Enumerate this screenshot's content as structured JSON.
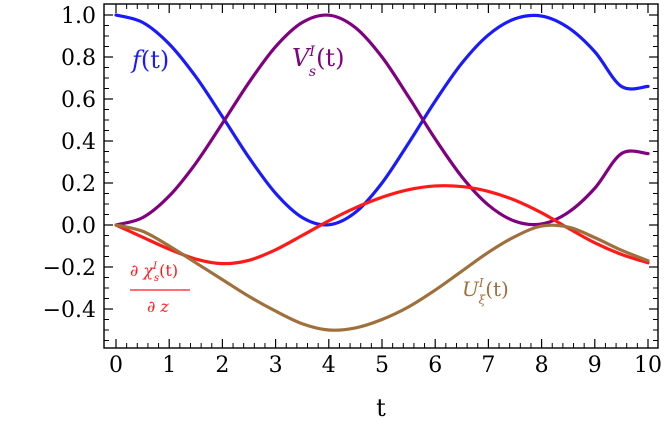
{
  "chart_data": {
    "type": "line",
    "xlabel": "t",
    "ylabel": "",
    "xlim": [
      0,
      10
    ],
    "ylim": [
      -0.58,
      1.0
    ],
    "x_ticks": [
      "0",
      "1",
      "2",
      "3",
      "4",
      "5",
      "6",
      "7",
      "8",
      "9",
      "10"
    ],
    "y_ticks": [
      "1.0",
      "0.8",
      "0.6",
      "0.4",
      "0.2",
      "0.0",
      "−0.2",
      "−0.4"
    ],
    "grid": false,
    "legend": "none",
    "x": [
      0,
      0.5,
      1,
      1.5,
      2,
      2.5,
      3,
      3.5,
      4,
      4.5,
      5,
      5.5,
      6,
      6.5,
      7,
      7.5,
      8,
      8.5,
      9,
      9.5,
      10
    ],
    "series": [
      {
        "name": "f(t)",
        "color": "#1a1aff",
        "values": [
          1.0,
          0.965,
          0.862,
          0.706,
          0.516,
          0.321,
          0.151,
          0.036,
          0.001,
          0.06,
          0.2,
          0.39,
          0.59,
          0.77,
          0.905,
          0.982,
          0.995,
          0.94,
          0.825,
          0.66,
          0.66
        ]
      },
      {
        "name": "V_s^I(t)",
        "color": "#800080",
        "values": [
          0.0,
          0.035,
          0.138,
          0.294,
          0.484,
          0.679,
          0.849,
          0.964,
          0.999,
          0.94,
          0.8,
          0.61,
          0.41,
          0.23,
          0.095,
          0.018,
          0.005,
          0.06,
          0.175,
          0.34,
          0.34
        ]
      },
      {
        "name": "∂χ_s^I(t)/∂z",
        "color": "#ff1a1a",
        "values": [
          0.0,
          -0.058,
          -0.115,
          -0.162,
          -0.184,
          -0.168,
          -0.118,
          -0.05,
          0.02,
          0.082,
          0.132,
          0.168,
          0.186,
          0.183,
          0.16,
          0.118,
          0.058,
          -0.015,
          -0.085,
          -0.14,
          -0.18
        ]
      },
      {
        "name": "U_ξ^I(t)",
        "color": "#a0703c",
        "values": [
          0.0,
          -0.03,
          -0.1,
          -0.18,
          -0.26,
          -0.34,
          -0.41,
          -0.47,
          -0.5,
          -0.49,
          -0.45,
          -0.39,
          -0.31,
          -0.22,
          -0.13,
          -0.055,
          -0.005,
          -0.01,
          -0.06,
          -0.12,
          -0.17
        ]
      }
    ],
    "labels": {
      "f": {
        "prefix": "f",
        "suffix": "(t)"
      },
      "V": {
        "base": "V",
        "sup": "I",
        "sub": "s",
        "suffix": "(t)"
      },
      "U": {
        "base": "U",
        "sup": "I",
        "sub": "ξ",
        "suffix": "(t)"
      },
      "chi": {
        "numerator_prefix": "∂ χ",
        "sup": "I",
        "sub": "s",
        "numerator_suffix": "(t)",
        "denominator": "∂ z"
      }
    }
  }
}
